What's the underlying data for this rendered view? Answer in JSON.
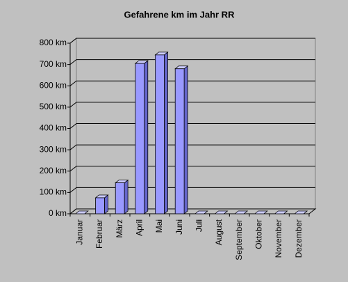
{
  "chart_data": {
    "type": "bar3d",
    "title": "Gefahrene km im Jahr RR",
    "categories": [
      "Januar",
      "Februar",
      "März",
      "April",
      "Mai",
      "Juni",
      "Juli",
      "August",
      "September",
      "Oktober",
      "November",
      "Dezember"
    ],
    "values": [
      0,
      75,
      145,
      705,
      745,
      680,
      0,
      0,
      0,
      0,
      0,
      0
    ],
    "color": "#9999ff",
    "ylim": [
      0,
      800
    ],
    "yticks": [
      {
        "value": 0,
        "label": "0 km"
      },
      {
        "value": 100,
        "label": "100 km"
      },
      {
        "value": 200,
        "label": "200 km"
      },
      {
        "value": 300,
        "label": "300 km"
      },
      {
        "value": 400,
        "label": "400 km"
      },
      {
        "value": 500,
        "label": "500 km"
      },
      {
        "value": 600,
        "label": "600 km"
      },
      {
        "value": 700,
        "label": "700 km"
      },
      {
        "value": 800,
        "label": "800 km"
      }
    ],
    "grid": true
  }
}
